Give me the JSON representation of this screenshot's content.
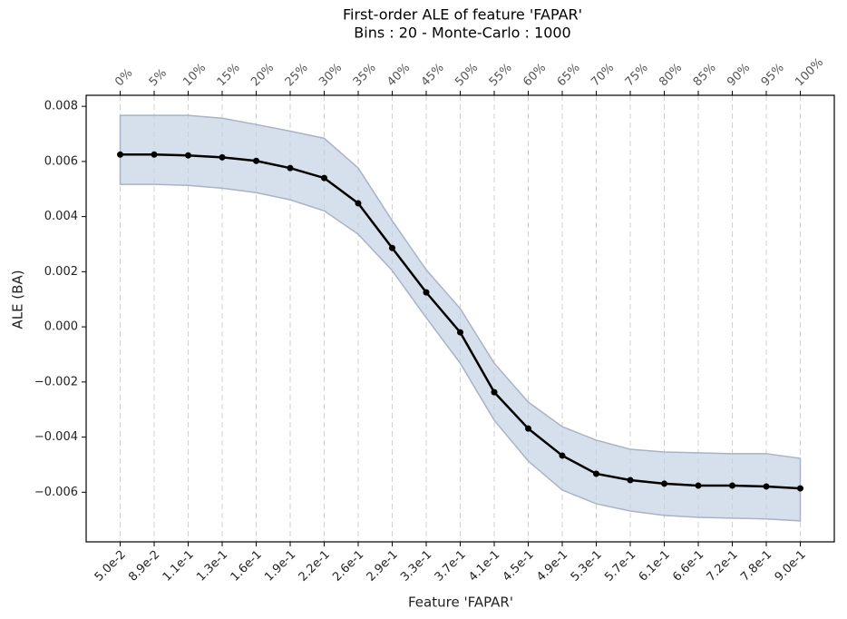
{
  "chart_data": {
    "type": "line",
    "title": "First-order ALE of feature 'FAPAR'",
    "subtitle": "Bins : 20 - Monte-Carlo : 1000",
    "xlabel": "Feature 'FAPAR'",
    "ylabel": "ALE (BA)",
    "categories": [
      "5.0e-2",
      "8.9e-2",
      "1.1e-1",
      "1.3e-1",
      "1.6e-1",
      "1.9e-1",
      "2.2e-1",
      "2.6e-1",
      "2.9e-1",
      "3.3e-1",
      "3.7e-1",
      "4.1e-1",
      "4.5e-1",
      "4.9e-1",
      "5.3e-1",
      "5.7e-1",
      "6.1e-1",
      "6.6e-1",
      "7.2e-1",
      "7.8e-1",
      "9.0e-1"
    ],
    "top_categories": [
      "0%",
      "5%",
      "10%",
      "15%",
      "20%",
      "25%",
      "30%",
      "35%",
      "40%",
      "45%",
      "50%",
      "55%",
      "60%",
      "65%",
      "70%",
      "75%",
      "80%",
      "85%",
      "90%",
      "95%",
      "100%"
    ],
    "values": [
      0.00625,
      0.00625,
      0.00622,
      0.00615,
      0.00602,
      0.00576,
      0.0054,
      0.00448,
      0.00286,
      0.00125,
      -0.0002,
      -0.00237,
      -0.00369,
      -0.00467,
      -0.00533,
      -0.00556,
      -0.00569,
      -0.00576,
      -0.00576,
      -0.00579,
      -0.00586
    ],
    "upper": [
      0.00767,
      0.00767,
      0.00767,
      0.00757,
      0.00734,
      0.0071,
      0.00684,
      0.00576,
      0.00385,
      0.00207,
      0.00066,
      -0.00132,
      -0.00273,
      -0.00362,
      -0.00411,
      -0.00444,
      -0.00454,
      -0.00457,
      -0.0046,
      -0.0046,
      -0.00477
    ],
    "lower": [
      0.00517,
      0.00517,
      0.00513,
      0.00503,
      0.00487,
      0.00461,
      0.00421,
      0.00336,
      0.00204,
      0.00033,
      -0.00132,
      -0.00339,
      -0.00487,
      -0.00592,
      -0.00642,
      -0.00668,
      -0.00684,
      -0.00691,
      -0.00694,
      -0.00697,
      -0.00704
    ],
    "color": "#000000",
    "band_color": "#c5d3e6",
    "band_edge_color": "#a9b3c4",
    "ylim": [
      -0.0078,
      0.0084
    ],
    "yticks": [
      {
        "value": -0.006,
        "label": "−0.006"
      },
      {
        "value": -0.004,
        "label": "−0.004"
      },
      {
        "value": -0.002,
        "label": "−0.002"
      },
      {
        "value": 0,
        "label": "0.000"
      },
      {
        "value": 0.002,
        "label": "0.002"
      },
      {
        "value": 0.004,
        "label": "0.004"
      },
      {
        "value": 0.006,
        "label": "0.006"
      },
      {
        "value": 0.008,
        "label": "0.008"
      }
    ],
    "grid": "x"
  }
}
